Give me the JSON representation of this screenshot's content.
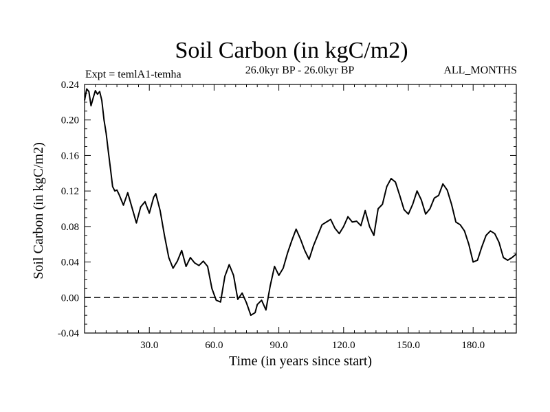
{
  "chart_data": {
    "type": "line",
    "title": "Soil Carbon (in kgC/m2)",
    "subtitle": "26.0kyr BP - 26.0kyr BP",
    "experiment_label": "Expt = temlA1-temha",
    "months_label": "ALL_MONTHS",
    "xlabel": "Time (in years since start)",
    "ylabel": "Soil Carbon (in kgC/m2)",
    "xlim": [
      0,
      200
    ],
    "ylim": [
      -0.04,
      0.24
    ],
    "xticks": [
      30,
      60,
      90,
      120,
      150,
      180
    ],
    "xtick_labels": [
      "30.0",
      "60.0",
      "90.0",
      "120.0",
      "150.0",
      "180.0"
    ],
    "yticks": [
      -0.04,
      0.0,
      0.04,
      0.08,
      0.12,
      0.16,
      0.2,
      0.24
    ],
    "ytick_labels": [
      "-0.04",
      "0.00",
      "0.04",
      "0.08",
      "0.12",
      "0.16",
      "0.20",
      "0.24"
    ],
    "reference_line": {
      "y": 0.0,
      "style": "dashed"
    },
    "grid": false,
    "series": [
      {
        "name": "Soil Carbon",
        "color": "#000000",
        "x": [
          0,
          1,
          2,
          3,
          4,
          5,
          6,
          7,
          8,
          9,
          10,
          11,
          12,
          13,
          14,
          15,
          16,
          18,
          20,
          22,
          24,
          26,
          28,
          30,
          32,
          33,
          35,
          37,
          39,
          41,
          43,
          45,
          47,
          49,
          51,
          53,
          55,
          57,
          59,
          61,
          63,
          65,
          67,
          69,
          71,
          73,
          75,
          77,
          79,
          80,
          82,
          84,
          86,
          88,
          90,
          92,
          94,
          96,
          98,
          100,
          102,
          104,
          106,
          108,
          110,
          112,
          114,
          116,
          118,
          120,
          122,
          124,
          126,
          128,
          130,
          132,
          134,
          136,
          138,
          140,
          142,
          144,
          146,
          148,
          150,
          152,
          154,
          156,
          158,
          160,
          162,
          164,
          166,
          168,
          170,
          172,
          174,
          176,
          178,
          180,
          182,
          184,
          186,
          188,
          190,
          192,
          194,
          196,
          198,
          200
        ],
        "values": [
          0.222,
          0.235,
          0.232,
          0.216,
          0.225,
          0.233,
          0.229,
          0.232,
          0.222,
          0.2,
          0.185,
          0.165,
          0.145,
          0.125,
          0.12,
          0.121,
          0.116,
          0.104,
          0.118,
          0.101,
          0.084,
          0.102,
          0.108,
          0.095,
          0.113,
          0.117,
          0.098,
          0.07,
          0.045,
          0.033,
          0.041,
          0.053,
          0.035,
          0.045,
          0.039,
          0.036,
          0.041,
          0.035,
          0.01,
          -0.003,
          -0.005,
          0.024,
          0.037,
          0.025,
          -0.002,
          0.005,
          -0.006,
          -0.02,
          -0.017,
          -0.008,
          -0.003,
          -0.014,
          0.013,
          0.035,
          0.025,
          0.033,
          0.05,
          0.064,
          0.077,
          0.066,
          0.053,
          0.043,
          0.058,
          0.07,
          0.082,
          0.085,
          0.088,
          0.078,
          0.072,
          0.08,
          0.091,
          0.085,
          0.086,
          0.081,
          0.098,
          0.08,
          0.07,
          0.1,
          0.105,
          0.125,
          0.134,
          0.13,
          0.115,
          0.099,
          0.094,
          0.105,
          0.12,
          0.11,
          0.094,
          0.1,
          0.112,
          0.115,
          0.128,
          0.121,
          0.105,
          0.085,
          0.082,
          0.075,
          0.06,
          0.04,
          0.042,
          0.057,
          0.07,
          0.075,
          0.072,
          0.062,
          0.045,
          0.042,
          0.045,
          0.049
        ]
      }
    ]
  }
}
